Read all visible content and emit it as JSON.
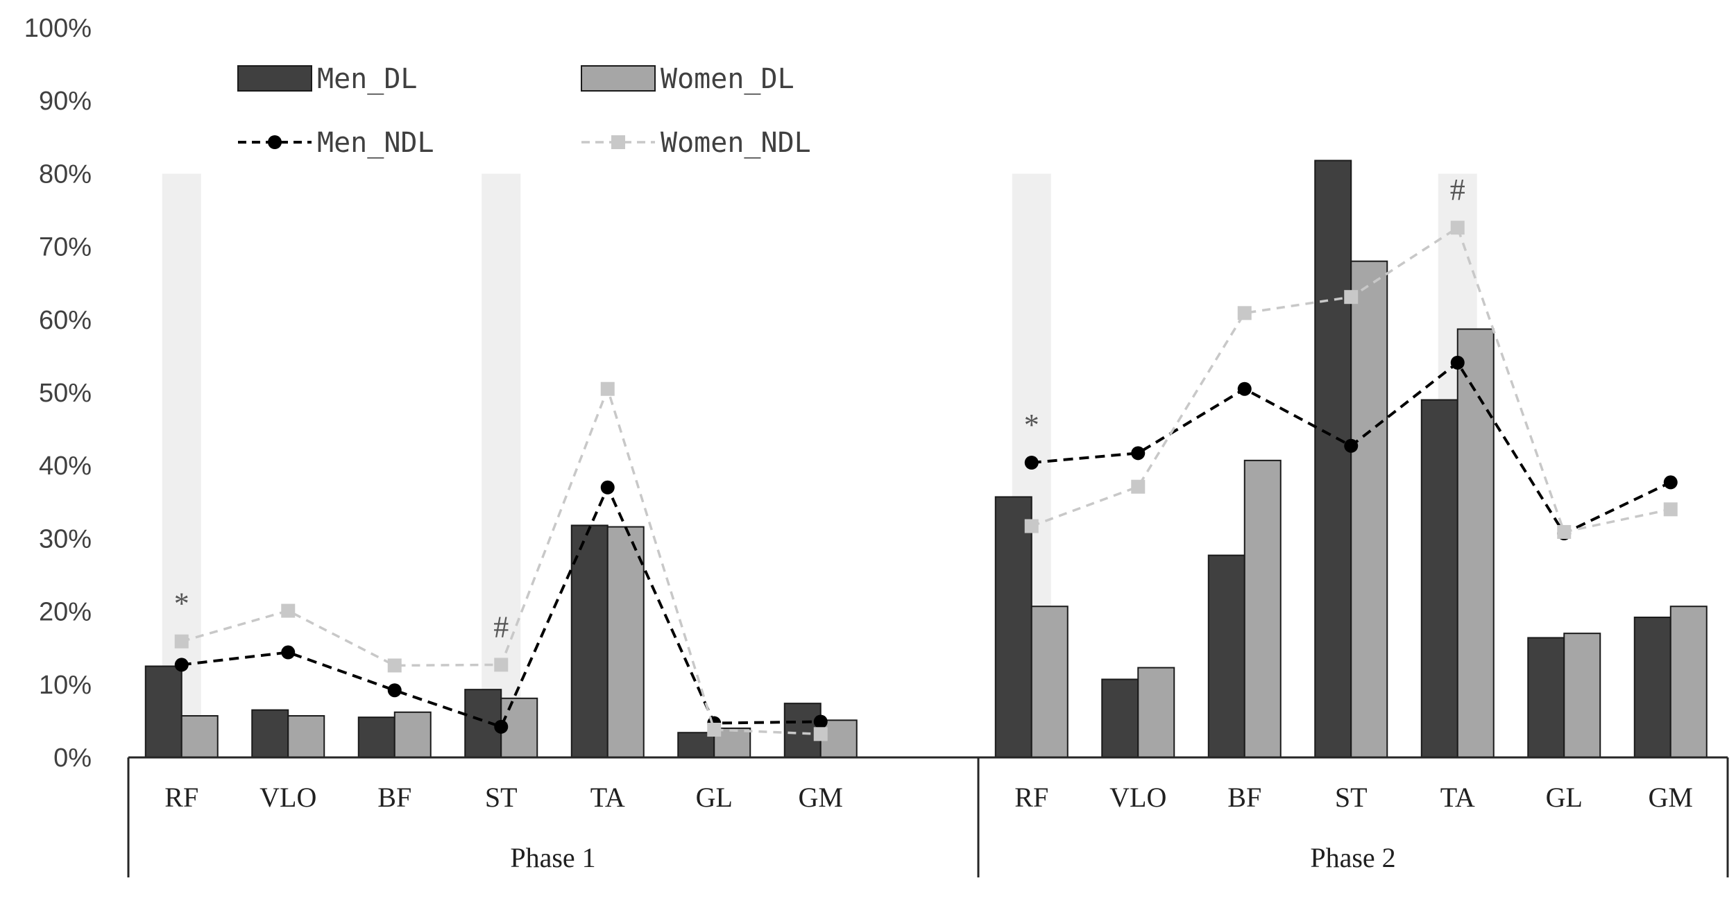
{
  "chart_data": {
    "type": "bar",
    "title": "",
    "xlabel": "",
    "ylabel": "",
    "ylim": [
      0,
      100
    ],
    "yticks": [
      "0%",
      "10%",
      "20%",
      "30%",
      "40%",
      "50%",
      "60%",
      "70%",
      "80%",
      "90%",
      "100%"
    ],
    "groups": [
      "Phase 1",
      "Phase 2"
    ],
    "categories": [
      "RF",
      "VLO",
      "BF",
      "ST",
      "TA",
      "GL",
      "GM"
    ],
    "series": [
      {
        "name": "Men_DL",
        "kind": "bar",
        "color": "#404040",
        "values": [
          [
            12.5,
            6.5,
            5.5,
            9.3,
            31.8,
            3.4,
            7.4
          ],
          [
            35.7,
            10.7,
            27.7,
            81.8,
            49.0,
            16.4,
            19.2
          ]
        ]
      },
      {
        "name": "Women_DL",
        "kind": "bar",
        "color": "#a6a6a6",
        "values": [
          [
            5.7,
            5.7,
            6.2,
            8.1,
            31.6,
            4.0,
            5.1
          ],
          [
            20.7,
            12.3,
            40.7,
            68.0,
            58.7,
            17.0,
            20.7
          ]
        ]
      },
      {
        "name": "Men_NDL",
        "kind": "line",
        "color": "#000000",
        "values": [
          [
            12.7,
            14.4,
            9.2,
            4.2,
            37.0,
            4.7,
            4.9
          ],
          [
            40.4,
            41.7,
            50.5,
            42.7,
            54.1,
            30.7,
            37.7
          ]
        ]
      },
      {
        "name": "Women_NDL",
        "kind": "line",
        "color": "#c8c8c8",
        "values": [
          [
            15.9,
            20.1,
            12.6,
            12.7,
            50.5,
            3.8,
            3.2
          ],
          [
            31.7,
            37.1,
            60.9,
            63.1,
            72.6,
            30.9,
            34.0
          ]
        ]
      }
    ],
    "highlights": [
      {
        "group": 0,
        "category": 0,
        "symbol": "*"
      },
      {
        "group": 0,
        "category": 3,
        "symbol": "#"
      },
      {
        "group": 1,
        "category": 0,
        "symbol": "*"
      },
      {
        "group": 1,
        "category": 4,
        "symbol": "#"
      }
    ],
    "legend": {
      "position": "top-left",
      "entries": [
        "Men_DL",
        "Women_DL",
        "Men_NDL",
        "Women_NDL"
      ]
    }
  }
}
